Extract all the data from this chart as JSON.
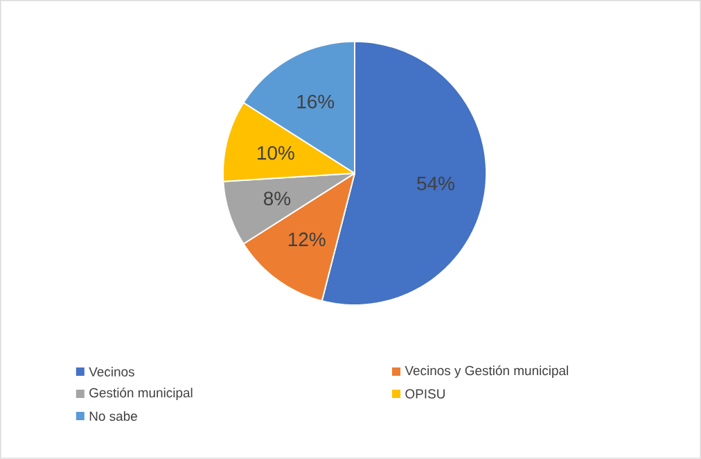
{
  "chart_data": {
    "type": "pie",
    "categories": [
      "Vecinos",
      "Vecinos y Gestión municipal",
      "Gestión municipal",
      "OPISU",
      "No sabe"
    ],
    "values": [
      54,
      12,
      8,
      10,
      16
    ],
    "value_labels": [
      "54%",
      "12%",
      "8%",
      "10%",
      "16%"
    ],
    "colors": [
      "#4472c4",
      "#ed7d31",
      "#a5a5a5",
      "#ffc000",
      "#5b9bd5"
    ],
    "legend": "bottom"
  }
}
